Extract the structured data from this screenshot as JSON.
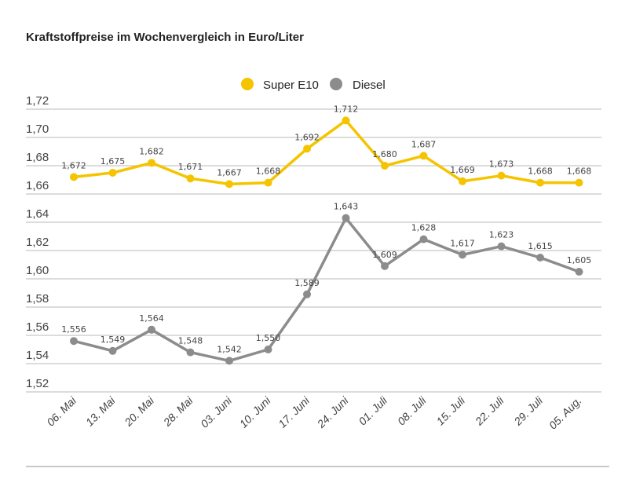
{
  "chart_data": {
    "type": "line",
    "title": "Kraftstoffpreise im Wochenvergleich in Euro/Liter",
    "categories": [
      "06. Mai",
      "13. Mai",
      "20. Mai",
      "28. Mai",
      "03. Juni",
      "10. Juni",
      "17. Juni",
      "24. Juni",
      "01. Juli",
      "08. Juli",
      "15. Juli",
      "22. Juli",
      "29. Juli",
      "05. Aug."
    ],
    "series": [
      {
        "name": "Super E10",
        "color": "#f5c400",
        "values": [
          1.672,
          1.675,
          1.682,
          1.671,
          1.667,
          1.668,
          1.692,
          1.712,
          1.68,
          1.687,
          1.669,
          1.673,
          1.668,
          1.668
        ],
        "labels": [
          "1,672",
          "1,675",
          "1,682",
          "1,671",
          "1,667",
          "1,668",
          "1,692",
          "1,712",
          "1,680",
          "1,687",
          "1,669",
          "1,673",
          "1,668",
          "1,668"
        ]
      },
      {
        "name": "Diesel",
        "color": "#8c8c8c",
        "values": [
          1.556,
          1.549,
          1.564,
          1.548,
          1.542,
          1.55,
          1.589,
          1.643,
          1.609,
          1.628,
          1.617,
          1.623,
          1.615,
          1.605
        ],
        "labels": [
          "1,556",
          "1,549",
          "1,564",
          "1,548",
          "1,542",
          "1,550",
          "1,589",
          "1,643",
          "1,609",
          "1,628",
          "1,617",
          "1,623",
          "1,615",
          "1,605"
        ]
      }
    ],
    "yticks": [
      1.72,
      1.7,
      1.68,
      1.66,
      1.64,
      1.62,
      1.6,
      1.58,
      1.56,
      1.54,
      1.52
    ],
    "ytick_labels": [
      "1,72",
      "1,70",
      "1,68",
      "1,66",
      "1,64",
      "1,62",
      "1,60",
      "1,58",
      "1,56",
      "1,54",
      "1,52"
    ],
    "ylim": [
      1.52,
      1.72
    ],
    "grid": true,
    "legend": "top-center"
  }
}
